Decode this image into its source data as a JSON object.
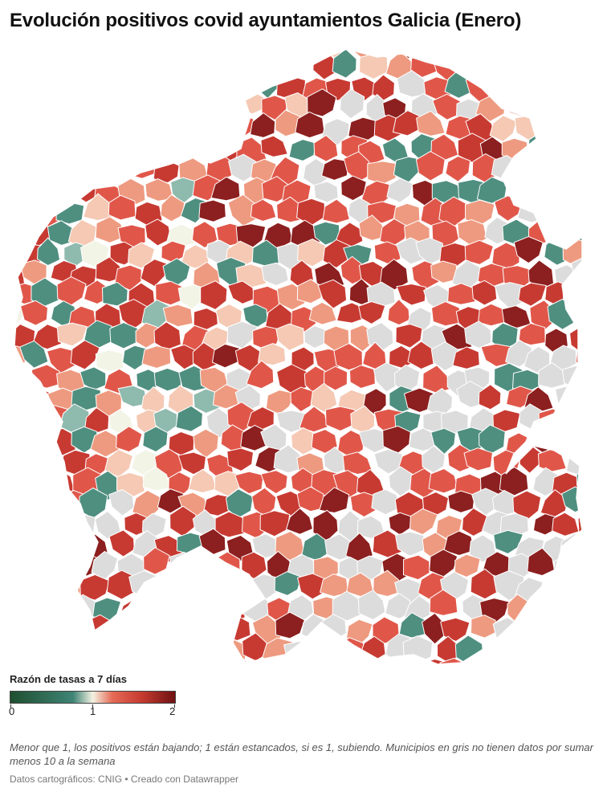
{
  "title": "Evolución positivos covid ayuntamientos Galicia (Enero)",
  "map": {
    "region": "Galicia",
    "colors": {
      "no_data": "#dcdcdc",
      "falling_strong": "#2e6e5e",
      "falling": "#4f8f80",
      "falling_light": "#8fbaae",
      "neutral": "#f2f4e6",
      "rising_light": "#f5c9b4",
      "rising_mid": "#ee9a80",
      "rising": "#e0574a",
      "rising_strong": "#c73a32",
      "rising_max": "#8c1f1f"
    }
  },
  "legend": {
    "title": "Razón de tasas a 7 días",
    "labels": [
      "0",
      "1",
      "2"
    ],
    "gradient": [
      "#1f4f2f",
      "#3e8475",
      "#f4f2e2",
      "#e66a55",
      "#c53a30",
      "#6e1212"
    ]
  },
  "note": "Menor que 1, los positivos están bajando; 1 están estancados, si es 1, subiendo. Municipios en gris no tienen datos por sumar menos 10 a la semana",
  "credit": "Datos cartográficos: CNIG • Creado con Datawrapper"
}
